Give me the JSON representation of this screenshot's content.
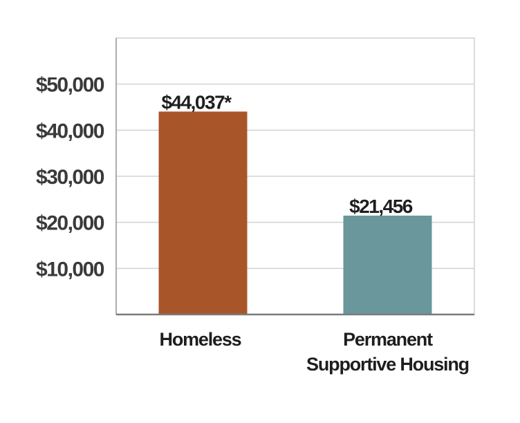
{
  "chart_data": {
    "type": "bar",
    "categories": [
      [
        "Homeless"
      ],
      [
        "Permanent",
        "Supportive Housing"
      ]
    ],
    "values": [
      44037,
      21456
    ],
    "data_labels": [
      "$44,037*",
      "$21,456"
    ],
    "y_ticks": [
      10000,
      20000,
      30000,
      40000,
      50000
    ],
    "y_tick_labels": [
      "$10,000",
      "$20,000",
      "$30,000",
      "$40,000",
      "$50,000"
    ],
    "ylim": [
      0,
      60000
    ],
    "grid": true,
    "colors": [
      "#a9552a",
      "#69979b"
    ]
  }
}
